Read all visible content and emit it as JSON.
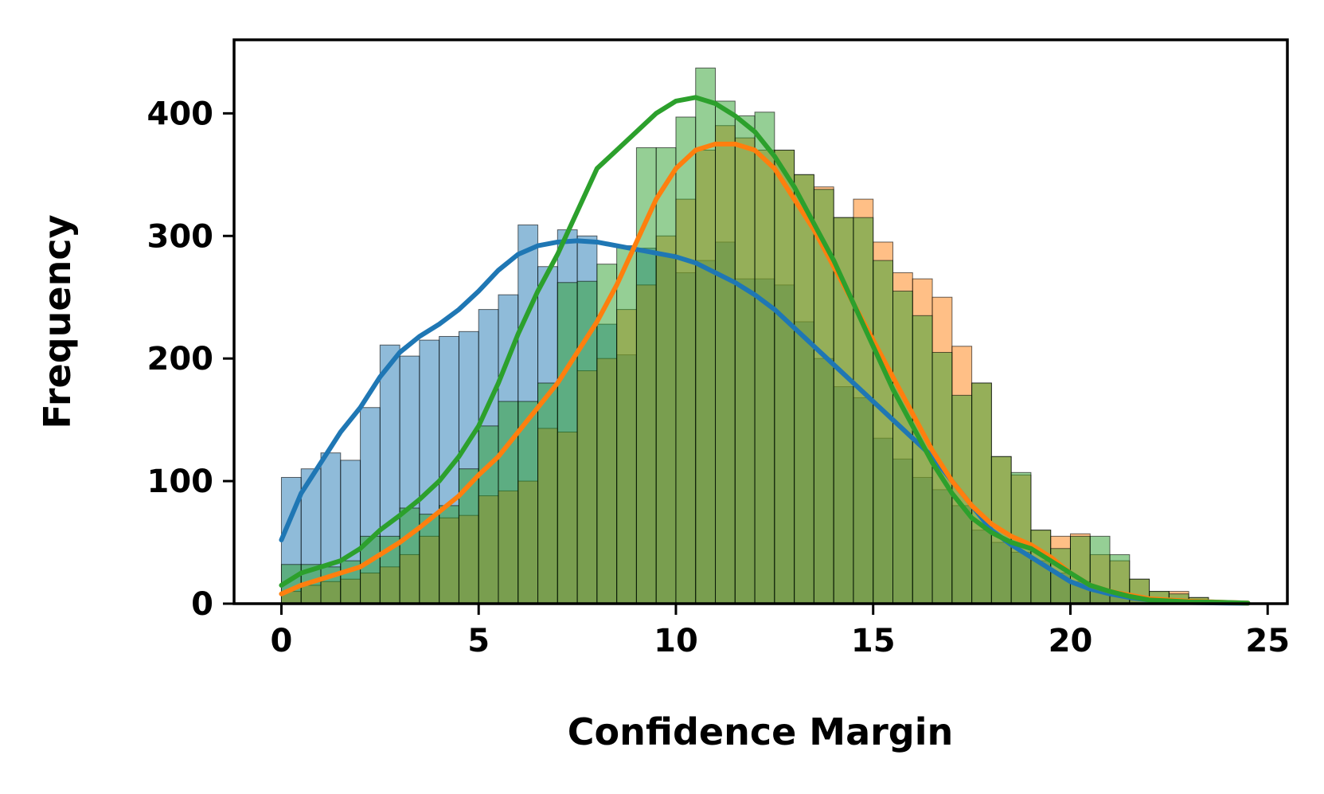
{
  "chart_data": {
    "type": "histogram",
    "title": "",
    "xlabel": "Confidence Margin",
    "ylabel": "Frequency",
    "xlim": [
      -1.2,
      25.5
    ],
    "ylim": [
      0,
      460
    ],
    "xticks": [
      "0",
      "5",
      "10",
      "15",
      "20",
      "25"
    ],
    "yticks": [
      "0",
      "100",
      "200",
      "300",
      "400"
    ],
    "grid": false,
    "legend": "none",
    "bin_width": 0.5,
    "bin_start": 0,
    "series": [
      {
        "color": "#1f77b4",
        "counts": [
          103,
          110,
          123,
          117,
          160,
          211,
          202,
          215,
          218,
          222,
          240,
          252,
          309,
          275,
          305,
          300,
          228,
          203,
          290,
          285,
          270,
          280,
          295,
          265,
          265,
          260,
          230,
          200,
          177,
          168,
          135,
          118,
          103,
          93,
          80,
          60,
          50,
          42,
          35,
          25,
          18,
          10,
          6,
          3,
          2,
          1,
          1,
          0,
          0,
          0
        ],
        "kde": [
          [
            0,
            52
          ],
          [
            0.5,
            90
          ],
          [
            1,
            115
          ],
          [
            1.5,
            140
          ],
          [
            2,
            160
          ],
          [
            2.5,
            185
          ],
          [
            3,
            205
          ],
          [
            3.5,
            218
          ],
          [
            4,
            228
          ],
          [
            4.5,
            240
          ],
          [
            5,
            255
          ],
          [
            5.5,
            272
          ],
          [
            6,
            285
          ],
          [
            6.5,
            292
          ],
          [
            7,
            295
          ],
          [
            7.5,
            296
          ],
          [
            8,
            295
          ],
          [
            8.5,
            292
          ],
          [
            9,
            289
          ],
          [
            9.5,
            286
          ],
          [
            10,
            283
          ],
          [
            10.5,
            278
          ],
          [
            11,
            270
          ],
          [
            11.5,
            262
          ],
          [
            12,
            252
          ],
          [
            12.5,
            240
          ],
          [
            13,
            225
          ],
          [
            13.5,
            210
          ],
          [
            14,
            195
          ],
          [
            14.5,
            180
          ],
          [
            15,
            165
          ],
          [
            15.5,
            150
          ],
          [
            16,
            135
          ],
          [
            16.5,
            120
          ],
          [
            17,
            100
          ],
          [
            17.5,
            80
          ],
          [
            18,
            60
          ],
          [
            18.5,
            48
          ],
          [
            19,
            38
          ],
          [
            19.5,
            28
          ],
          [
            20,
            18
          ],
          [
            20.5,
            12
          ],
          [
            21,
            8
          ],
          [
            21.5,
            5
          ],
          [
            22,
            3
          ],
          [
            23,
            1
          ],
          [
            24,
            0.5
          ],
          [
            24.5,
            0.3
          ]
        ]
      },
      {
        "color": "#ff7f0e",
        "counts": [
          10,
          15,
          18,
          20,
          25,
          30,
          40,
          55,
          70,
          72,
          88,
          92,
          100,
          143,
          140,
          190,
          200,
          240,
          260,
          300,
          330,
          370,
          390,
          380,
          370,
          370,
          350,
          340,
          315,
          330,
          295,
          270,
          265,
          250,
          210,
          180,
          120,
          105,
          60,
          55,
          57,
          40,
          35,
          20,
          10,
          10,
          5,
          2,
          1,
          0
        ],
        "kde": [
          [
            0,
            8
          ],
          [
            0.5,
            15
          ],
          [
            1,
            20
          ],
          [
            1.5,
            25
          ],
          [
            2,
            30
          ],
          [
            2.5,
            40
          ],
          [
            3,
            50
          ],
          [
            3.5,
            62
          ],
          [
            4,
            75
          ],
          [
            4.5,
            88
          ],
          [
            5,
            105
          ],
          [
            5.5,
            120
          ],
          [
            6,
            140
          ],
          [
            6.5,
            160
          ],
          [
            7,
            180
          ],
          [
            7.5,
            205
          ],
          [
            8,
            230
          ],
          [
            8.5,
            260
          ],
          [
            9,
            295
          ],
          [
            9.5,
            330
          ],
          [
            10,
            355
          ],
          [
            10.5,
            370
          ],
          [
            11,
            375
          ],
          [
            11.5,
            375
          ],
          [
            12,
            370
          ],
          [
            12.5,
            355
          ],
          [
            13,
            330
          ],
          [
            13.5,
            305
          ],
          [
            14,
            275
          ],
          [
            14.5,
            245
          ],
          [
            15,
            215
          ],
          [
            15.5,
            185
          ],
          [
            16,
            155
          ],
          [
            16.5,
            125
          ],
          [
            17,
            100
          ],
          [
            17.5,
            80
          ],
          [
            18,
            65
          ],
          [
            18.5,
            55
          ],
          [
            19,
            48
          ],
          [
            19.5,
            38
          ],
          [
            20,
            25
          ],
          [
            20.5,
            15
          ],
          [
            21,
            10
          ],
          [
            21.5,
            7
          ],
          [
            22,
            4
          ],
          [
            23,
            2
          ],
          [
            24,
            1
          ],
          [
            24.5,
            0.5
          ]
        ]
      },
      {
        "color": "#2ca02c",
        "counts": [
          32,
          32,
          30,
          35,
          55,
          55,
          78,
          73,
          80,
          110,
          145,
          165,
          165,
          180,
          262,
          263,
          277,
          292,
          372,
          372,
          397,
          437,
          410,
          398,
          401,
          370,
          350,
          338,
          315,
          315,
          280,
          255,
          235,
          205,
          170,
          180,
          120,
          107,
          60,
          45,
          55,
          55,
          40,
          20,
          10,
          8,
          5,
          2,
          1,
          0
        ],
        "kde": [
          [
            0,
            15
          ],
          [
            0.5,
            25
          ],
          [
            1,
            30
          ],
          [
            1.5,
            35
          ],
          [
            2,
            45
          ],
          [
            2.5,
            60
          ],
          [
            3,
            72
          ],
          [
            3.5,
            85
          ],
          [
            4,
            100
          ],
          [
            4.5,
            120
          ],
          [
            5,
            145
          ],
          [
            5.5,
            180
          ],
          [
            6,
            220
          ],
          [
            6.5,
            255
          ],
          [
            7,
            285
          ],
          [
            7.5,
            320
          ],
          [
            8,
            355
          ],
          [
            8.5,
            370
          ],
          [
            9,
            385
          ],
          [
            9.5,
            400
          ],
          [
            10,
            410
          ],
          [
            10.5,
            413
          ],
          [
            11,
            408
          ],
          [
            11.5,
            398
          ],
          [
            12,
            385
          ],
          [
            12.5,
            365
          ],
          [
            13,
            340
          ],
          [
            13.5,
            310
          ],
          [
            14,
            280
          ],
          [
            14.5,
            245
          ],
          [
            15,
            210
          ],
          [
            15.5,
            175
          ],
          [
            16,
            145
          ],
          [
            16.5,
            115
          ],
          [
            17,
            90
          ],
          [
            17.5,
            70
          ],
          [
            18,
            58
          ],
          [
            18.5,
            50
          ],
          [
            19,
            45
          ],
          [
            19.5,
            35
          ],
          [
            20,
            25
          ],
          [
            20.5,
            15
          ],
          [
            21,
            10
          ],
          [
            21.5,
            6
          ],
          [
            22,
            3
          ],
          [
            23,
            1.5
          ],
          [
            24,
            1
          ],
          [
            24.5,
            0.5
          ]
        ]
      }
    ]
  }
}
